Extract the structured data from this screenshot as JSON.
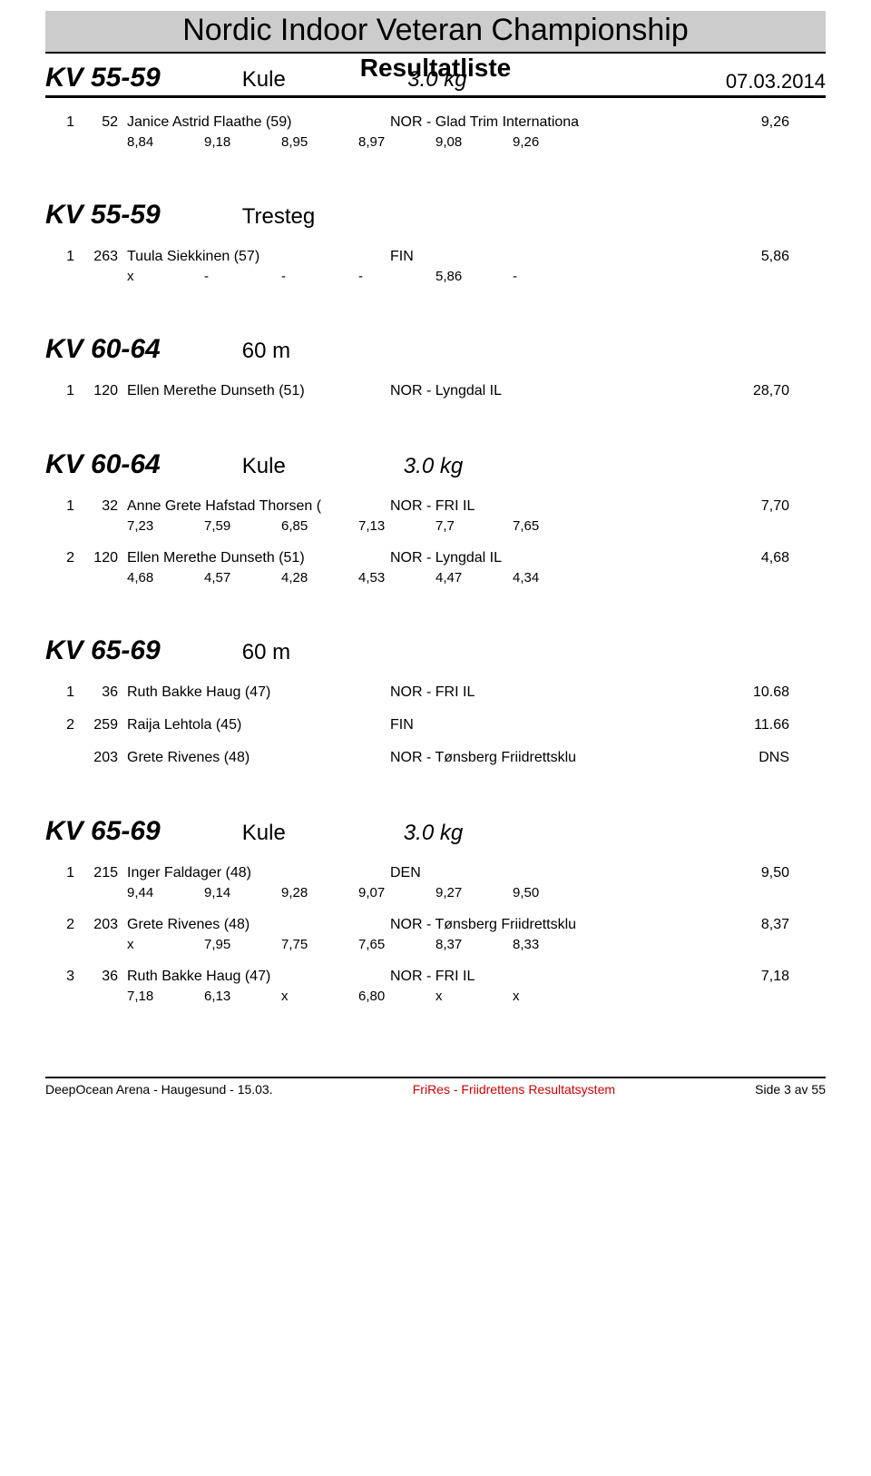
{
  "header": {
    "title": "Nordic Indoor Veteran Championship",
    "subtitle": "Resultatliste",
    "date": "07.03.2014"
  },
  "first_section": {
    "class_label": "KV 55-59",
    "event": "Kule",
    "spec": "3.0 kg",
    "rows": [
      {
        "place": "1",
        "bib": "52",
        "name": "Janice Astrid Flaathe (59)",
        "club": "NOR - Glad Trim Internationa",
        "mark": "9,26",
        "attempts": [
          "8,84",
          "9,18",
          "8,95",
          "8,97",
          "9,08",
          "9,26"
        ]
      }
    ]
  },
  "sections": [
    {
      "class_label": "KV 55-59",
      "event": "Tresteg",
      "spec": "",
      "rows": [
        {
          "place": "1",
          "bib": "263",
          "name": "Tuula Siekkinen (57)",
          "club": "FIN",
          "mark": "5,86",
          "attempts": [
            "x",
            "-",
            "-",
            "-",
            "5,86",
            "-"
          ]
        }
      ]
    },
    {
      "class_label": "KV 60-64",
      "event": "60 m",
      "spec": "",
      "rows": [
        {
          "place": "1",
          "bib": "120",
          "name": "Ellen Merethe Dunseth (51)",
          "club": "NOR - Lyngdal IL",
          "mark": "28,70",
          "attempts": null
        }
      ]
    },
    {
      "class_label": "KV 60-64",
      "event": "Kule",
      "spec": "3.0 kg",
      "rows": [
        {
          "place": "1",
          "bib": "32",
          "name": "Anne Grete Hafstad Thorsen (",
          "club": "NOR - FRI IL",
          "mark": "7,70",
          "attempts": [
            "7,23",
            "7,59",
            "6,85",
            "7,13",
            "7,7",
            "7,65"
          ]
        },
        {
          "place": "2",
          "bib": "120",
          "name": "Ellen Merethe Dunseth (51)",
          "club": "NOR - Lyngdal IL",
          "mark": "4,68",
          "attempts": [
            "4,68",
            "4,57",
            "4,28",
            "4,53",
            "4,47",
            "4,34"
          ]
        }
      ]
    },
    {
      "class_label": "KV 65-69",
      "event": "60 m",
      "spec": "",
      "rows": [
        {
          "place": "1",
          "bib": "36",
          "name": "Ruth Bakke Haug (47)",
          "club": "NOR - FRI IL",
          "mark": "10.68",
          "attempts": null
        },
        {
          "place": "2",
          "bib": "259",
          "name": "Raija Lehtola (45)",
          "club": "FIN",
          "mark": "11.66",
          "attempts": null
        },
        {
          "place": "",
          "bib": "203",
          "name": "Grete Rivenes (48)",
          "club": "NOR - Tønsberg Friidrettsklu",
          "mark": "DNS",
          "attempts": null
        }
      ]
    },
    {
      "class_label": "KV 65-69",
      "event": "Kule",
      "spec": "3.0 kg",
      "rows": [
        {
          "place": "1",
          "bib": "215",
          "name": "Inger Faldager (48)",
          "club": "DEN",
          "mark": "9,50",
          "attempts": [
            "9,44",
            "9,14",
            "9,28",
            "9,07",
            "9,27",
            "9,50"
          ]
        },
        {
          "place": "2",
          "bib": "203",
          "name": "Grete Rivenes (48)",
          "club": "NOR - Tønsberg Friidrettsklu",
          "mark": "8,37",
          "attempts": [
            "x",
            "7,95",
            "7,75",
            "7,65",
            "8,37",
            "8,33"
          ]
        },
        {
          "place": "3",
          "bib": "36",
          "name": "Ruth Bakke Haug (47)",
          "club": "NOR - FRI IL",
          "mark": "7,18",
          "attempts": [
            "7,18",
            "6,13",
            "x",
            "6,80",
            "x",
            "x"
          ]
        }
      ]
    }
  ],
  "footer": {
    "left": "DeepOcean Arena - Haugesund - 15.03.",
    "center": "FriRes - Friidrettens Resultatsystem",
    "right": "Side 3 av 55"
  }
}
